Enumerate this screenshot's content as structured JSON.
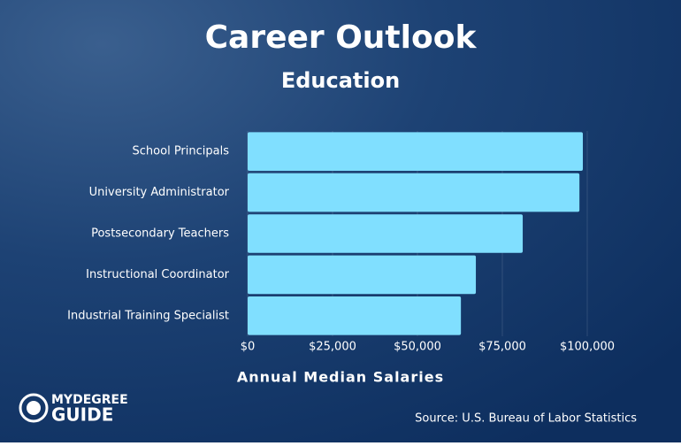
{
  "chart_data": {
    "type": "barh",
    "title": "Career Outlook",
    "subtitle": "Education",
    "categories": [
      "School Principals",
      "University Administrator",
      "Postsecondary Teachers",
      "Instructional Coordinator",
      "Industrial Training Specialist"
    ],
    "values": [
      98700,
      97700,
      81000,
      67200,
      62800
    ],
    "color": "#80dfff",
    "xlim": [
      0,
      100000
    ],
    "xticks": [
      {
        "value": 0,
        "label": "$0"
      },
      {
        "value": 25000,
        "label": "$25,000"
      },
      {
        "value": 50000,
        "label": "$50,000"
      },
      {
        "value": 75000,
        "label": "$75,000"
      },
      {
        "value": 100000,
        "label": "$100,000"
      }
    ],
    "grid": true,
    "xlabel": "Annual Median Salaries",
    "source": "Source: U.S. Bureau of Labor Statistics"
  },
  "branding": {
    "line1": "MYDEGREE",
    "line2": "GUIDE"
  }
}
